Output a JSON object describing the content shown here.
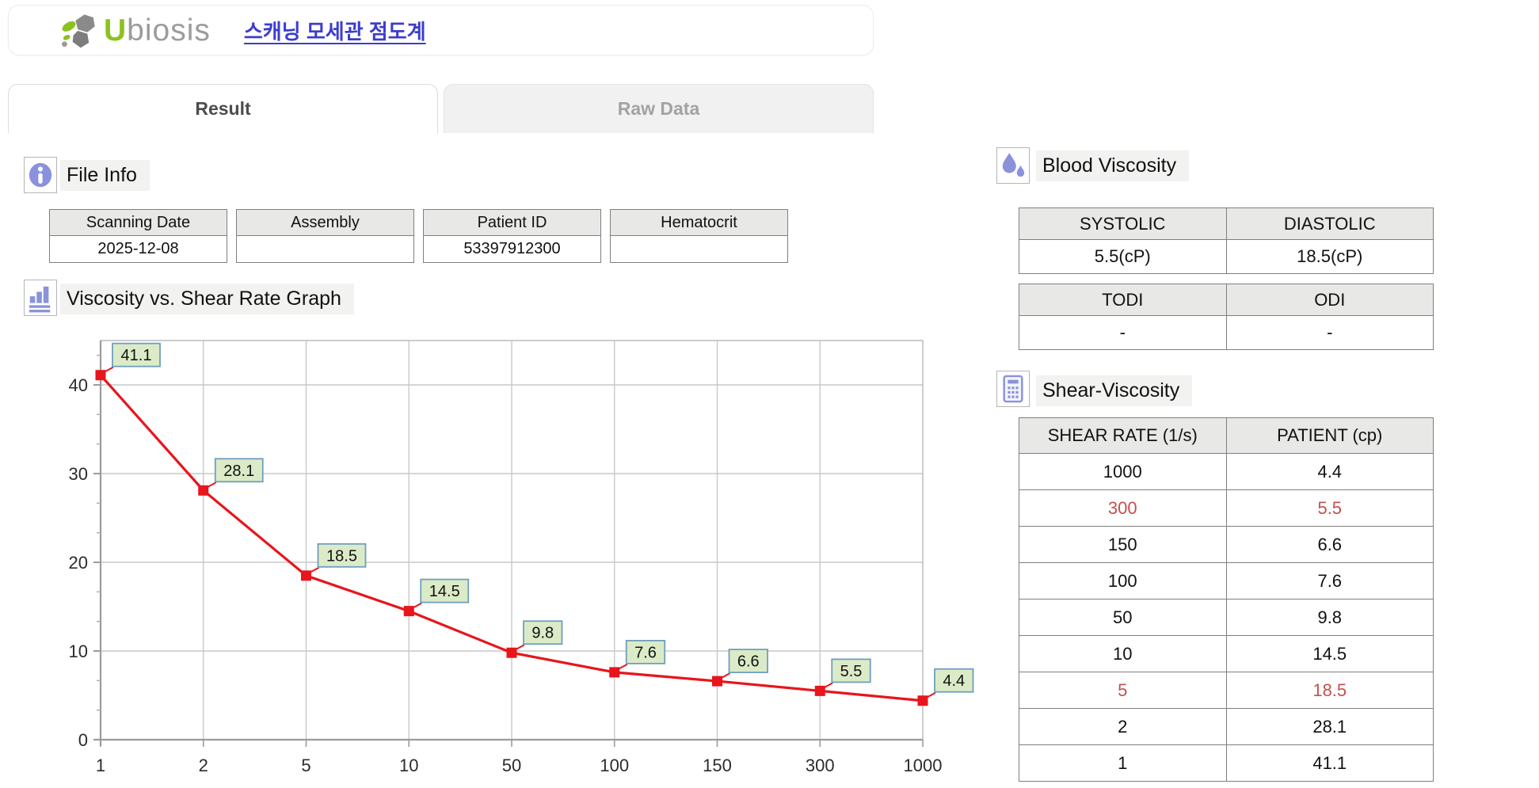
{
  "header": {
    "logo_u": "U",
    "logo_rest": "biosis",
    "app_title": "스캐닝 모세관 점도계"
  },
  "tabs": [
    {
      "label": "Result",
      "active": true
    },
    {
      "label": "Raw Data",
      "active": false
    }
  ],
  "file_info": {
    "title": "File Info",
    "fields": [
      {
        "label": "Scanning Date",
        "value": "2025-12-08"
      },
      {
        "label": "Assembly",
        "value": ""
      },
      {
        "label": "Patient ID",
        "value": "53397912300"
      },
      {
        "label": "Hematocrit",
        "value": ""
      }
    ]
  },
  "graph_section": {
    "title": "Viscosity vs. Shear Rate Graph"
  },
  "chart_data": {
    "type": "line",
    "title": "Viscosity vs. Shear Rate Graph",
    "categories": [
      "1",
      "2",
      "5",
      "10",
      "50",
      "100",
      "150",
      "300",
      "1000"
    ],
    "values": [
      41.1,
      28.1,
      18.5,
      14.5,
      9.8,
      7.6,
      6.6,
      5.5,
      4.4
    ],
    "point_labels": [
      "41.1",
      "28.1",
      "18.5",
      "14.5",
      "9.8",
      "7.6",
      "6.6",
      "5.5",
      "4.4"
    ],
    "yticks": [
      0,
      10,
      20,
      30,
      40
    ],
    "ylim": [
      0,
      45
    ],
    "grid": true,
    "legend": false,
    "colors": {
      "line": "#e8151c",
      "marker": "#e8151c",
      "label_bg": "#dcebc7",
      "label_border": "#6f9ec0",
      "grid": "#c9c9c9",
      "axis": "#9b9b9b",
      "tick_text": "#2b2b2b"
    }
  },
  "blood_viscosity": {
    "title": "Blood Viscosity",
    "pressure_table": {
      "headers": [
        "SYSTOLIC",
        "DIASTOLIC"
      ],
      "values": [
        "5.5(cP)",
        "18.5(cP)"
      ]
    },
    "index_table": {
      "headers": [
        "TODI",
        "ODI"
      ],
      "values": [
        "-",
        "-"
      ]
    }
  },
  "shear_viscosity": {
    "title": "Shear-Viscosity",
    "headers": [
      "SHEAR RATE (1/s)",
      "PATIENT (cp)"
    ],
    "rows": [
      {
        "shear": "1000",
        "patient": "4.4",
        "highlight": false
      },
      {
        "shear": "300",
        "patient": "5.5",
        "highlight": true
      },
      {
        "shear": "150",
        "patient": "6.6",
        "highlight": false
      },
      {
        "shear": "100",
        "patient": "7.6",
        "highlight": false
      },
      {
        "shear": "50",
        "patient": "9.8",
        "highlight": false
      },
      {
        "shear": "10",
        "patient": "14.5",
        "highlight": false
      },
      {
        "shear": "5",
        "patient": "18.5",
        "highlight": true
      },
      {
        "shear": "2",
        "patient": "28.1",
        "highlight": false
      },
      {
        "shear": "1",
        "patient": "41.1",
        "highlight": false
      }
    ]
  }
}
